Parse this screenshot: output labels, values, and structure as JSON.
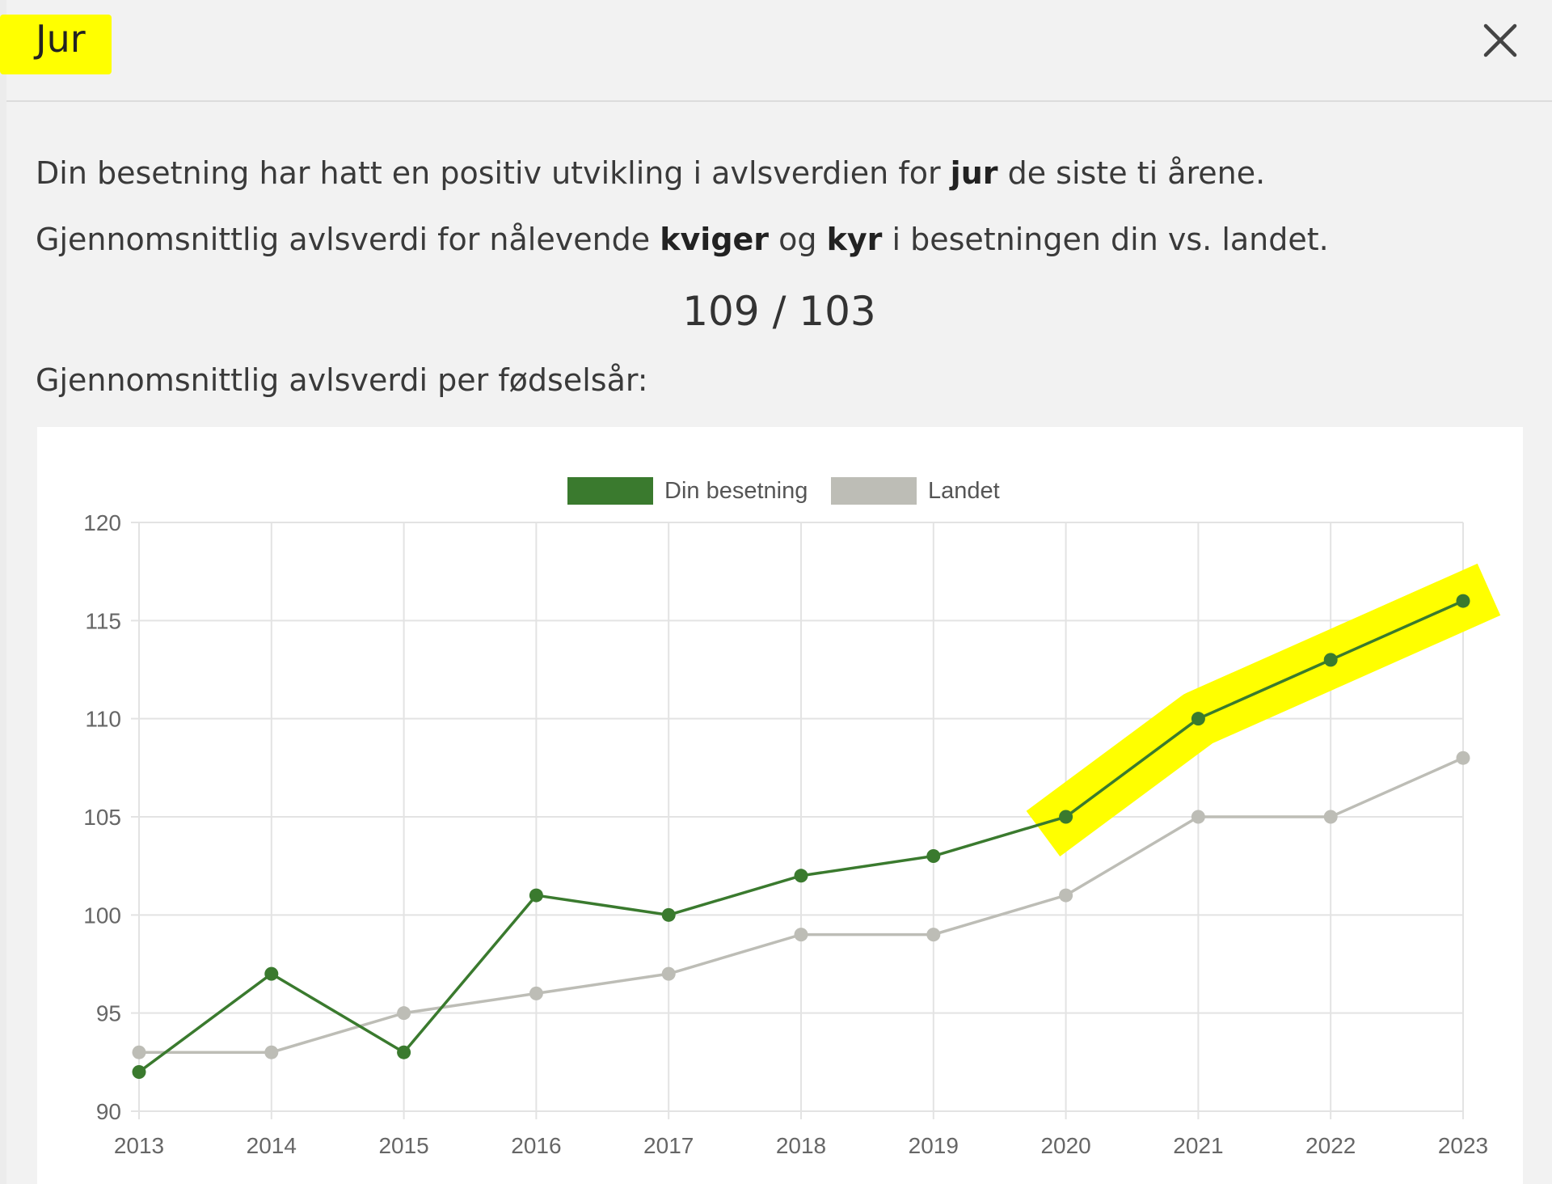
{
  "modal": {
    "title": "Jur",
    "close_icon": "close-icon",
    "intro_pre": "Din besetning har hatt en positiv utvikling i avlsverdien for ",
    "intro_bold": "jur",
    "intro_post": " de siste ti årene.",
    "avg_pre": "Gjennomsnittlig avlsverdi for nålevende ",
    "avg_bold1": "kviger",
    "avg_mid": " og ",
    "avg_bold2": "kyr",
    "avg_post": " i besetningen din vs. landet.",
    "score": "109 / 103",
    "per_year_label": "Gjennomsnittlig avlsverdi per fødselsår:",
    "highlight_color": "#ffff00"
  },
  "chart_data": {
    "type": "line",
    "title": "",
    "xlabel": "",
    "ylabel": "",
    "x": [
      "2013",
      "2014",
      "2015",
      "2016",
      "2017",
      "2018",
      "2019",
      "2020",
      "2021",
      "2022",
      "2023"
    ],
    "ylim": [
      90,
      120
    ],
    "yticks": [
      90,
      95,
      100,
      105,
      110,
      115,
      120
    ],
    "grid": true,
    "legend_position": "top-center",
    "series": [
      {
        "name": "Din besetning",
        "color": "#3a7a2e",
        "values": [
          92,
          97,
          93,
          101,
          100,
          102,
          103,
          105,
          110,
          113,
          116
        ]
      },
      {
        "name": "Landet",
        "color": "#bdbdb6",
        "values": [
          93,
          93,
          95,
          96,
          97,
          99,
          99,
          101,
          105,
          105,
          108
        ]
      }
    ],
    "annotations": [
      {
        "type": "highlight",
        "series": "Din besetning",
        "from_x": "2020",
        "to_x": "2023",
        "color": "#ffff00"
      }
    ]
  }
}
